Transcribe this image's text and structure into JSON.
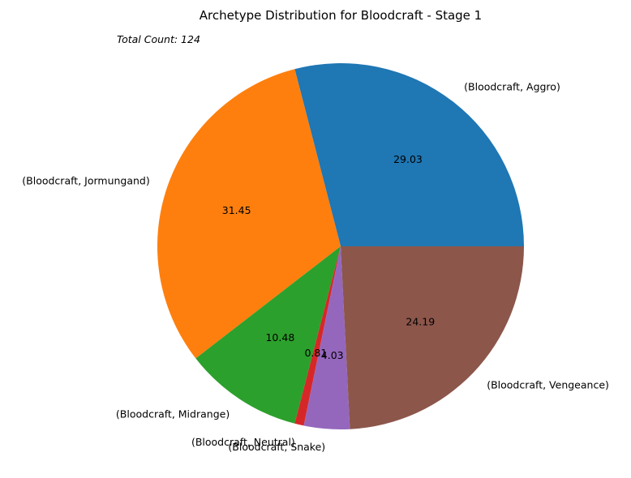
{
  "chart_data": {
    "type": "pie",
    "title": "Archetype Distribution for Bloodcraft - Stage 1",
    "subtitle": "Total Count: 124",
    "start_angle_deg": 0,
    "direction": "counterclockwise",
    "slices": [
      {
        "label": "(Bloodcraft, Aggro)",
        "value": 29.03,
        "pct_label": "29.03",
        "color": "#1f77b4"
      },
      {
        "label": "(Bloodcraft, Jormungand)",
        "value": 31.45,
        "pct_label": "31.45",
        "color": "#ff7f0e"
      },
      {
        "label": "(Bloodcraft, Midrange)",
        "value": 10.48,
        "pct_label": "10.48",
        "color": "#2ca02c"
      },
      {
        "label": "(Bloodcraft, Neutral)",
        "value": 0.81,
        "pct_label": "0.81",
        "color": "#d62728"
      },
      {
        "label": "(Bloodcraft, Snake)",
        "value": 4.03,
        "pct_label": "4.03",
        "color": "#9467bd"
      },
      {
        "label": "(Bloodcraft, Vengeance)",
        "value": 24.19,
        "pct_label": "24.19",
        "color": "#8c564b"
      }
    ]
  }
}
